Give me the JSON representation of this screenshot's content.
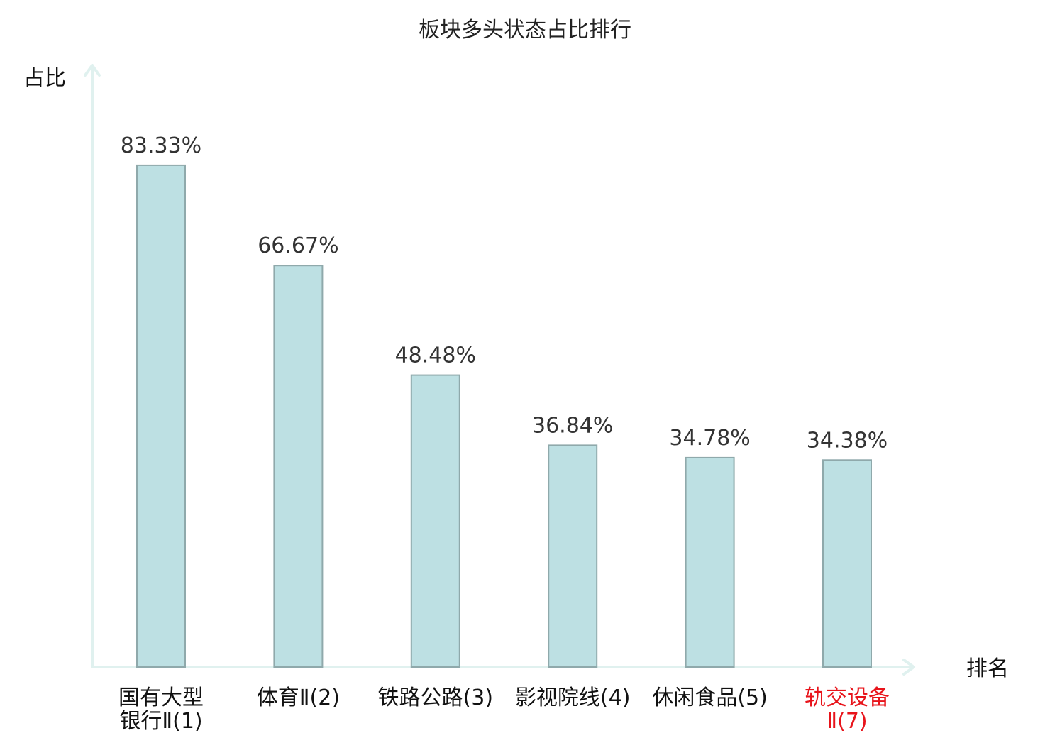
{
  "chart_data": {
    "type": "bar",
    "title": "板块多头状态占比排行",
    "ylabel": "占比",
    "xlabel": "排名",
    "ylim": [
      0,
      100
    ],
    "categories": [
      [
        "国有大型",
        "银行Ⅱ(1)"
      ],
      [
        "体育Ⅱ(2)"
      ],
      [
        "铁路公路(3)"
      ],
      [
        "影视院线(4)"
      ],
      [
        "休闲食品(5)"
      ],
      [
        "轨交设备",
        "Ⅱ(7)"
      ]
    ],
    "values": [
      83.33,
      66.67,
      48.48,
      36.84,
      34.78,
      34.38
    ],
    "value_labels": [
      "83.33%",
      "66.67%",
      "48.48%",
      "36.84%",
      "34.78%",
      "34.38%"
    ],
    "highlight_index": 5,
    "grid": false
  },
  "colors": {
    "bar_fill": "#bde0e3",
    "bar_stroke": "#8fa9ab",
    "axis": "#e0f1ef",
    "highlight_label": "#e8141b",
    "normal_label": "#111111",
    "value_label": "#333333"
  }
}
